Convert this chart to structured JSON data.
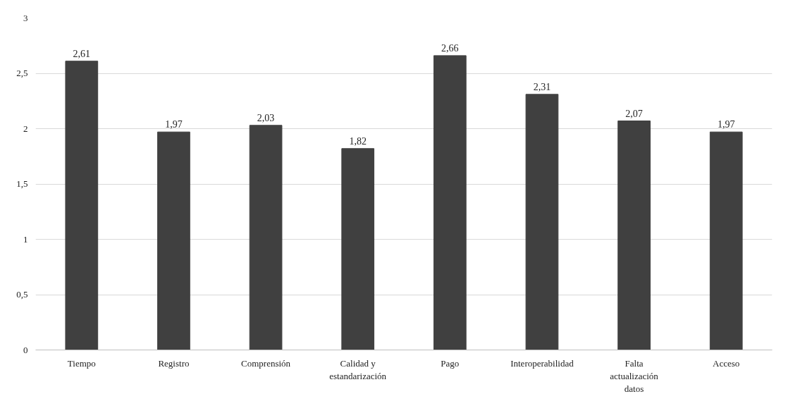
{
  "chart_data": {
    "type": "bar",
    "categories": [
      "Tiempo",
      "Registro",
      "Comprensión",
      "Calidad y estandarización",
      "Pago",
      "Interoperabilidad",
      "Falta actualización datos",
      "Acceso"
    ],
    "values": [
      2.61,
      1.97,
      2.03,
      1.82,
      2.66,
      2.31,
      2.07,
      1.97
    ],
    "value_labels": [
      "2,61",
      "1,97",
      "2,03",
      "1,82",
      "2,66",
      "2,31",
      "2,07",
      "1,97"
    ],
    "color": "#404040",
    "ylim": [
      0,
      3
    ],
    "yticks": [
      0,
      {
        "value": 0.5,
        "label": "0,5"
      },
      1,
      {
        "value": 1.5,
        "label": "1,5"
      },
      2,
      {
        "value": 2.5,
        "label": "2,5"
      },
      3
    ],
    "grid": "y"
  }
}
